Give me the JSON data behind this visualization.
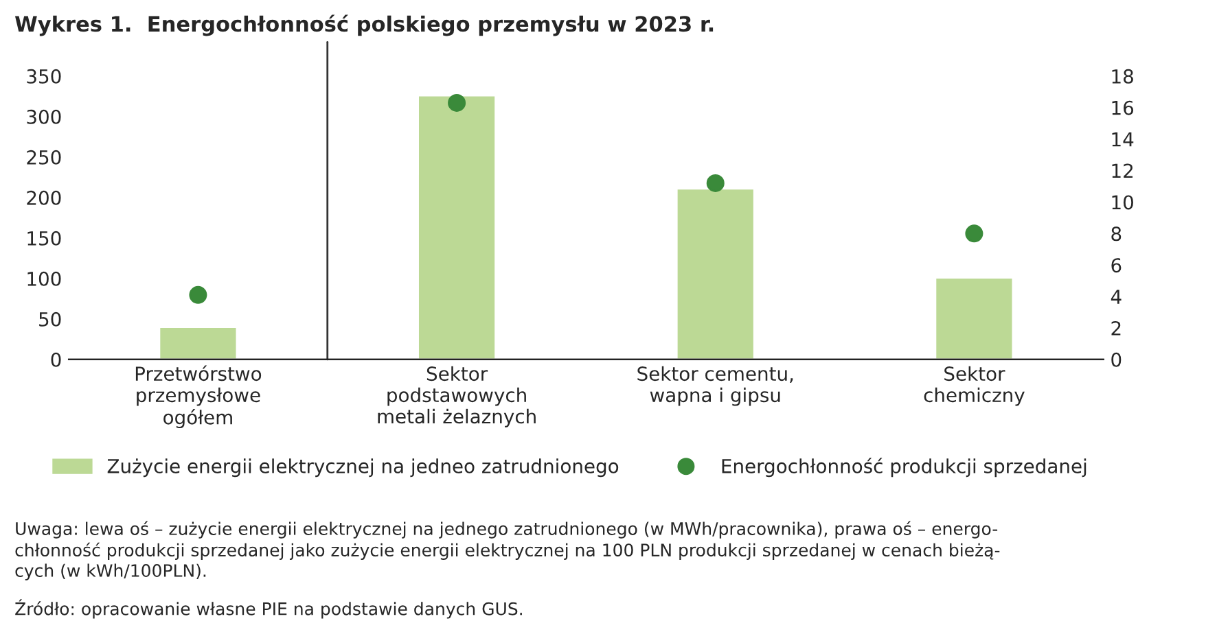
{
  "chart_data": {
    "type": "bar",
    "title": "Wykres 1.  Energochłonność polskiego przemysłu w 2023 r.",
    "categories": [
      "Przetwórstwo\nprzemysłowe\nogółem",
      "Sektor\npodstawowych\nmetali żelaznych",
      "Sektor cementu,\nwapna i gipsu",
      "Sektor\nchemiczny"
    ],
    "series": [
      {
        "name": "Zużycie energii elektrycznej na jedneo zatrudnionego",
        "color": "#bcd995",
        "values": [
          40,
          326,
          211,
          101
        ]
      },
      {
        "name": "Energochłonność produkcji sprzedanej",
        "type": "scatter",
        "axis": "y2",
        "color": "#3a8a3a",
        "values": [
          4.1,
          16.3,
          11.2,
          8.0
        ]
      }
    ],
    "ylim": [
      0,
      350
    ],
    "yticks": [
      0,
      50,
      100,
      150,
      200,
      250,
      300,
      350
    ],
    "y2lim": [
      0,
      18
    ],
    "y2ticks": [
      0,
      2,
      4,
      6,
      8,
      10,
      12,
      14,
      16,
      18
    ],
    "legend": "bottom",
    "grid": false,
    "marker": "circle",
    "annotations": [
      "Uwaga: lewa oś – zużycie energii elektrycznej na jednego zatrudnionego (w MWh/pracownika), prawa oś – energo-\nchłonność produkcji sprzedanej jako zużycie energii elektrycznej na 100 PLN produkcji sprzedanej w cenach bieżą-\ncych (w kWh/100PLN).",
      "Źródło: opracowanie własne PIE na podstawie danych GUS."
    ]
  }
}
